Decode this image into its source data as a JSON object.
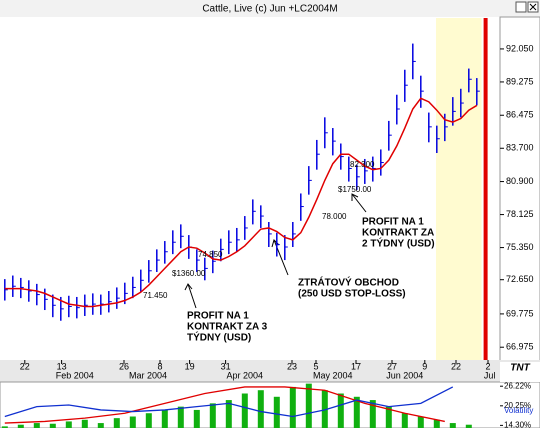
{
  "window_title": "Cattle, Live (c) Jun +LC2004M",
  "chart_data": [
    {
      "type": "ohlc",
      "title": "Cattle, Live (c) Jun +LC2004M",
      "xlim": [
        -0.6,
        61.9
      ],
      "ylim": [
        65.9,
        94.65
      ],
      "yticks": [
        {
          "value": 92.05,
          "label": "92.050"
        },
        {
          "value": 89.275,
          "label": "89.275"
        },
        {
          "value": 86.475,
          "label": "86.475"
        },
        {
          "value": 83.7,
          "label": "83.700"
        },
        {
          "value": 80.9,
          "label": "80.900"
        },
        {
          "value": 78.125,
          "label": "78.125"
        },
        {
          "value": 75.35,
          "label": "75.350"
        },
        {
          "value": 72.65,
          "label": "72.650"
        },
        {
          "value": 69.775,
          "label": "69.775"
        },
        {
          "value": 66.975,
          "label": "66.975"
        }
      ],
      "xticks": [
        {
          "value": 2.5,
          "label": "22"
        },
        {
          "value": 7.1,
          "label": "13"
        },
        {
          "value": 14.9,
          "label": "26"
        },
        {
          "value": 19.4,
          "label": "8"
        },
        {
          "value": 23.1,
          "label": "19"
        },
        {
          "value": 27.6,
          "label": "31"
        },
        {
          "value": 35.9,
          "label": "23"
        },
        {
          "value": 38.9,
          "label": "5"
        },
        {
          "value": 43.9,
          "label": "17"
        },
        {
          "value": 48.4,
          "label": "27"
        },
        {
          "value": 52.5,
          "label": "9"
        },
        {
          "value": 56.4,
          "label": "22"
        },
        {
          "value": 60.4,
          "label": "2"
        }
      ],
      "month_ticks": [
        {
          "value": 8.75,
          "label": "Feb 2004"
        },
        {
          "value": 17.9,
          "label": "Mar 2004"
        },
        {
          "value": 30,
          "label": "Apr 2004"
        },
        {
          "value": 41,
          "label": "May 2004"
        },
        {
          "value": 50,
          "label": "Jun 2004"
        },
        {
          "value": 60.6,
          "label": "Jul"
        }
      ],
      "highlight_range": [
        53.9,
        59.6
      ],
      "highlight_color": "#fffbd0",
      "marker_x": 60.1,
      "marker_color": "#e00000",
      "bar_color": "#0000e0",
      "ma_color": "#e00000",
      "high": [
        72.7,
        73.0,
        72.8,
        72.6,
        72.3,
        71.9,
        71.4,
        71.2,
        71.3,
        71.2,
        71.4,
        71.5,
        71.4,
        71.7,
        72.0,
        72.4,
        72.9,
        73.5,
        74.3,
        75.2,
        75.9,
        76.8,
        77.3,
        76.4,
        75.2,
        74.5,
        75.1,
        76.1,
        76.8,
        77.0,
        78.0,
        79.4,
        78.9,
        77.5,
        76.6,
        76.4,
        77.5,
        79.9,
        82.2,
        84.4,
        86.3,
        85.4,
        84.1,
        83.0,
        82.3,
        82.8,
        83.0,
        83.6,
        86.0,
        88.2,
        90.3,
        92.5,
        89.8,
        86.7,
        85.6,
        86.6,
        88.0,
        88.7,
        90.4,
        89.6
      ],
      "low": [
        70.9,
        71.2,
        71.1,
        70.8,
        70.5,
        70.1,
        69.5,
        69.2,
        69.5,
        69.4,
        69.6,
        69.7,
        69.7,
        69.9,
        70.2,
        70.6,
        71.1,
        71.6,
        72.4,
        73.3,
        74.0,
        74.8,
        75.3,
        74.4,
        73.3,
        72.6,
        73.2,
        74.2,
        74.8,
        75.0,
        76.0,
        77.3,
        77.0,
        75.4,
        74.6,
        74.3,
        75.4,
        77.6,
        79.8,
        81.9,
        83.7,
        83.1,
        81.9,
        80.9,
        80.2,
        80.7,
        80.9,
        81.4,
        83.5,
        85.7,
        87.6,
        89.5,
        87.1,
        84.2,
        83.3,
        84.3,
        85.6,
        86.3,
        88.4,
        87.3
      ],
      "close": [
        71.8,
        72.1,
        72.0,
        71.7,
        71.4,
        71.0,
        70.5,
        70.2,
        70.4,
        70.3,
        70.5,
        70.6,
        70.6,
        70.8,
        71.1,
        71.5,
        72.0,
        72.6,
        73.4,
        74.3,
        75.0,
        75.8,
        76.3,
        75.4,
        74.3,
        73.6,
        74.2,
        75.2,
        75.8,
        76.0,
        77.0,
        78.4,
        78.0,
        76.5,
        75.6,
        75.4,
        76.5,
        78.8,
        81.0,
        83.2,
        85.0,
        84.3,
        83.0,
        82.0,
        81.3,
        81.8,
        82.0,
        82.5,
        84.8,
        87.0,
        89.0,
        91.0,
        88.5,
        85.5,
        84.5,
        85.5,
        86.8,
        87.5,
        89.5,
        88.5
      ],
      "ma": [
        71.9,
        71.9,
        71.9,
        71.8,
        71.7,
        71.5,
        71.2,
        70.9,
        70.6,
        70.5,
        70.4,
        70.4,
        70.5,
        70.6,
        70.7,
        70.9,
        71.2,
        71.6,
        72.2,
        72.9,
        73.6,
        74.3,
        75.0,
        75.4,
        75.3,
        74.9,
        74.4,
        74.3,
        74.6,
        75.0,
        75.5,
        76.2,
        76.9,
        77.0,
        76.7,
        76.2,
        76.0,
        76.6,
        77.9,
        79.4,
        81.0,
        82.4,
        83.2,
        83.2,
        82.7,
        82.2,
        81.9,
        82.0,
        82.7,
        83.9,
        85.4,
        87.0,
        87.9,
        87.6,
        86.9,
        86.1,
        85.9,
        86.2,
        86.9,
        87.3
      ],
      "annotations": [
        {
          "text": [
            "PROFIT NA 1",
            "KONTRAKT ZA 3",
            "TÝDNY (USD)"
          ]
        },
        {
          "text": [
            "ZTRÁTOVÝ OBCHOD",
            "(250 USD STOP-LOSS)"
          ]
        },
        {
          "text": [
            "PROFIT NA 1",
            "KONTRAKT ZA",
            "2 TÝDNY (USD)"
          ]
        },
        {
          "text": [
            "71.450"
          ]
        },
        {
          "text": [
            "$1360.00"
          ]
        },
        {
          "text": [
            "74.850"
          ]
        },
        {
          "text": [
            "78.000"
          ]
        },
        {
          "text": [
            "$1750.00"
          ]
        },
        {
          "text": [
            "82.300"
          ]
        }
      ]
    },
    {
      "type": "bar",
      "label": "Volatility",
      "xlim": [
        -0.6,
        61.9
      ],
      "ylim": [
        13.5,
        27.5
      ],
      "yticks": [
        {
          "value": 26.22,
          "label": "26.22%"
        },
        {
          "value": 20.25,
          "label": "20.25%"
        },
        {
          "value": 14.3,
          "label": "14.30%"
        }
      ],
      "x": [
        0,
        2,
        4,
        6,
        8,
        10,
        12,
        14,
        16,
        18,
        20,
        22,
        24,
        26,
        28,
        30,
        32,
        34,
        36,
        38,
        40,
        42,
        44,
        46,
        48,
        50,
        52,
        54,
        56,
        58
      ],
      "values": [
        14,
        14.5,
        15,
        14.8,
        15.5,
        16,
        15,
        16.5,
        17,
        18,
        19,
        20,
        19,
        21,
        22,
        24,
        25,
        23,
        26,
        27,
        25,
        24,
        23,
        22,
        20,
        18,
        17,
        16,
        15,
        14.5
      ],
      "color": "#10b010",
      "lines": [
        {
          "color": "#e00000",
          "x": [
            0,
            5,
            10,
            15,
            20,
            25,
            30,
            35,
            40,
            45,
            50,
            55
          ],
          "values": [
            15,
            15.5,
            16.5,
            18,
            21,
            24,
            26,
            26,
            25,
            21,
            18,
            15.5
          ]
        },
        {
          "color": "#1030d0",
          "x": [
            0,
            4,
            8,
            12,
            16,
            20,
            24,
            28,
            32,
            36,
            40,
            44,
            48,
            52,
            56
          ],
          "values": [
            17,
            20,
            20.5,
            19,
            18.5,
            19,
            20,
            21,
            18.5,
            17,
            19,
            22,
            20,
            21,
            26
          ]
        }
      ]
    }
  ]
}
